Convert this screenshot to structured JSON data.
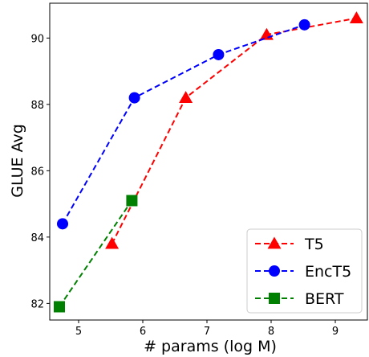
{
  "chart_data": {
    "type": "line",
    "title": "",
    "xlabel": "# params (log M)",
    "ylabel": "GLUE Avg",
    "xlim": [
      4.55,
      9.5
    ],
    "ylim": [
      81.5,
      91.05
    ],
    "xticks": [
      5,
      6,
      7,
      8,
      9
    ],
    "yticks": [
      82,
      84,
      86,
      88,
      90
    ],
    "grid": false,
    "legend_position": "bottom-right",
    "series": [
      {
        "name": "T5",
        "color": "#ff0000",
        "marker": "triangle",
        "line_style": "dashed",
        "x": [
          5.52,
          6.67,
          7.93,
          9.33
        ],
        "y": [
          83.8,
          88.2,
          90.1,
          90.6
        ]
      },
      {
        "name": "EncT5",
        "color": "#0000ff",
        "marker": "circle",
        "line_style": "dashed",
        "x": [
          4.75,
          5.87,
          7.18,
          8.52
        ],
        "y": [
          84.4,
          88.2,
          89.5,
          90.4
        ]
      },
      {
        "name": "BERT",
        "color": "#008000",
        "marker": "square",
        "line_style": "dashed",
        "x": [
          4.7,
          5.83
        ],
        "y": [
          81.9,
          85.1
        ]
      }
    ]
  }
}
